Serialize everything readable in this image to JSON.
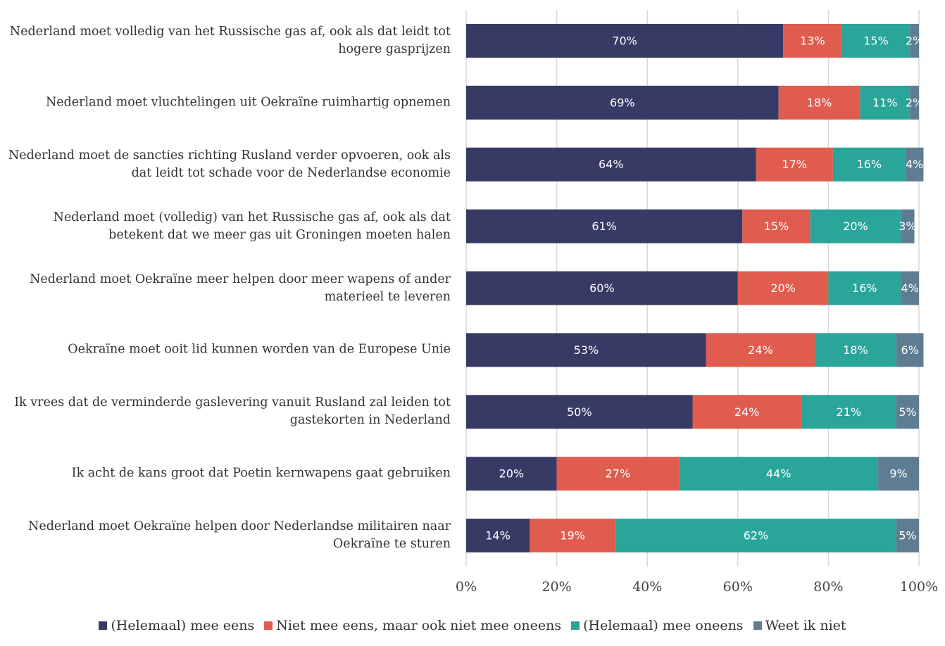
{
  "chart_data": {
    "type": "stacked_barh",
    "categories": [
      "Nederland moet volledig van het Russische gas af, ook als dat leidt tot hogere gasprijzen",
      "Nederland moet vluchtelingen uit Oekraïne ruimhartig opnemen",
      "Nederland moet de sancties richting Rusland verder opvoeren, ook als dat leidt tot schade voor de Nederlandse economie",
      "Nederland moet (volledig) van het Russische gas af, ook als dat betekent dat we meer gas uit Groningen moeten halen",
      "Nederland moet Oekraïne meer helpen door meer wapens of ander materieel te leveren",
      "Oekraïne moet ooit lid kunnen worden van de Europese Unie",
      "Ik vrees dat de verminderde gaslevering vanuit Rusland zal leiden tot gastekorten in Nederland",
      "Ik acht de kans groot dat Poetin kernwapens gaat gebruiken",
      "Nederland moet Oekraïne helpen door Nederlandse militairen naar Oekraïne te sturen"
    ],
    "series": [
      {
        "name": "(Helemaal) mee eens",
        "color": "#383a66",
        "values": [
          70,
          69,
          64,
          61,
          60,
          53,
          50,
          20,
          14
        ],
        "value_labels": [
          "70%",
          "69%",
          "64%",
          "61%",
          "60%",
          "53%",
          "50%",
          "20%",
          "14%"
        ]
      },
      {
        "name": "Niet mee eens, maar ook niet mee oneens",
        "color": "#e05c4f",
        "values": [
          13,
          18,
          17,
          15,
          20,
          24,
          24,
          27,
          19
        ],
        "value_labels": [
          "13%",
          "18%",
          "17%",
          "15%",
          "20%",
          "24%",
          "24%",
          "27%",
          "19%"
        ]
      },
      {
        "name": "(Helemaal) mee oneens",
        "color": "#2aa59a",
        "values": [
          15,
          11,
          16,
          20,
          16,
          18,
          21,
          44,
          62
        ],
        "value_labels": [
          "15%",
          "11%",
          "16%",
          "20%",
          "16%",
          "18%",
          "21%",
          "44%",
          "62%"
        ]
      },
      {
        "name": "Weet ik niet",
        "color": "#5f7d92",
        "values": [
          2,
          2,
          4,
          3,
          4,
          6,
          5,
          9,
          5
        ],
        "value_labels": [
          "2%",
          "2%",
          "4%",
          "3%",
          "4%",
          "6%",
          "5%",
          "9%",
          "5%"
        ]
      }
    ],
    "xlim": [
      0,
      100
    ],
    "xticks": [
      {
        "value": 0,
        "label": "0%"
      },
      {
        "value": 20,
        "label": "20%"
      },
      {
        "value": 40,
        "label": "40%"
      },
      {
        "value": 60,
        "label": "60%"
      },
      {
        "value": 80,
        "label": "80%"
      },
      {
        "value": 100,
        "label": "100%"
      }
    ],
    "grid": true,
    "legend": "bottom"
  }
}
